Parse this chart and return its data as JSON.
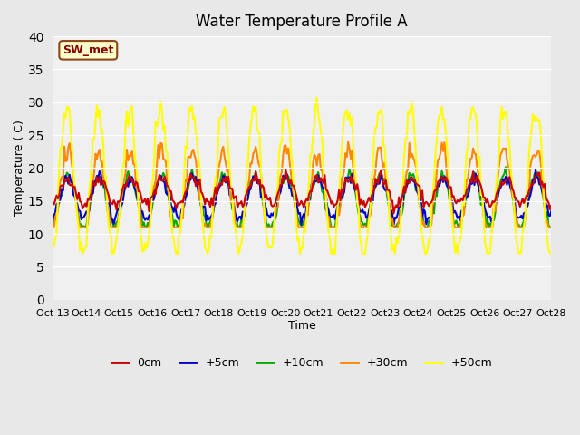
{
  "title": "Water Temperature Profile A",
  "xlabel": "Time",
  "ylabel": "Temperature ( C)",
  "ylim": [
    0,
    40
  ],
  "xlim": [
    0,
    360
  ],
  "background_color": "#f0f0f0",
  "plot_bg": "#f0f0f0",
  "grid_color": "white",
  "annotation_text": "SW_met",
  "annotation_color": "#8b0000",
  "annotation_bg": "#ffffcc",
  "annotation_border": "#8b4513",
  "xtick_labels": [
    "Oct 13",
    "Oct 14",
    "Oct 15",
    "Oct 16",
    "Oct 17",
    "Oct 18",
    "Oct 19",
    "Oct 20",
    "Oct 21",
    "Oct 22",
    "Oct 23",
    "Oct 24",
    "Oct 25",
    "Oct 26",
    "Oct 27",
    "Oct 28"
  ],
  "series_colors": [
    "#cc0000",
    "#0000cc",
    "#00aa00",
    "#ff8800",
    "#ffff00"
  ],
  "series_labels": [
    "0cm",
    "+5cm",
    "+10cm",
    "+30cm",
    "+50cm"
  ],
  "series_linewidths": [
    1.5,
    1.5,
    1.5,
    1.5,
    1.5
  ]
}
